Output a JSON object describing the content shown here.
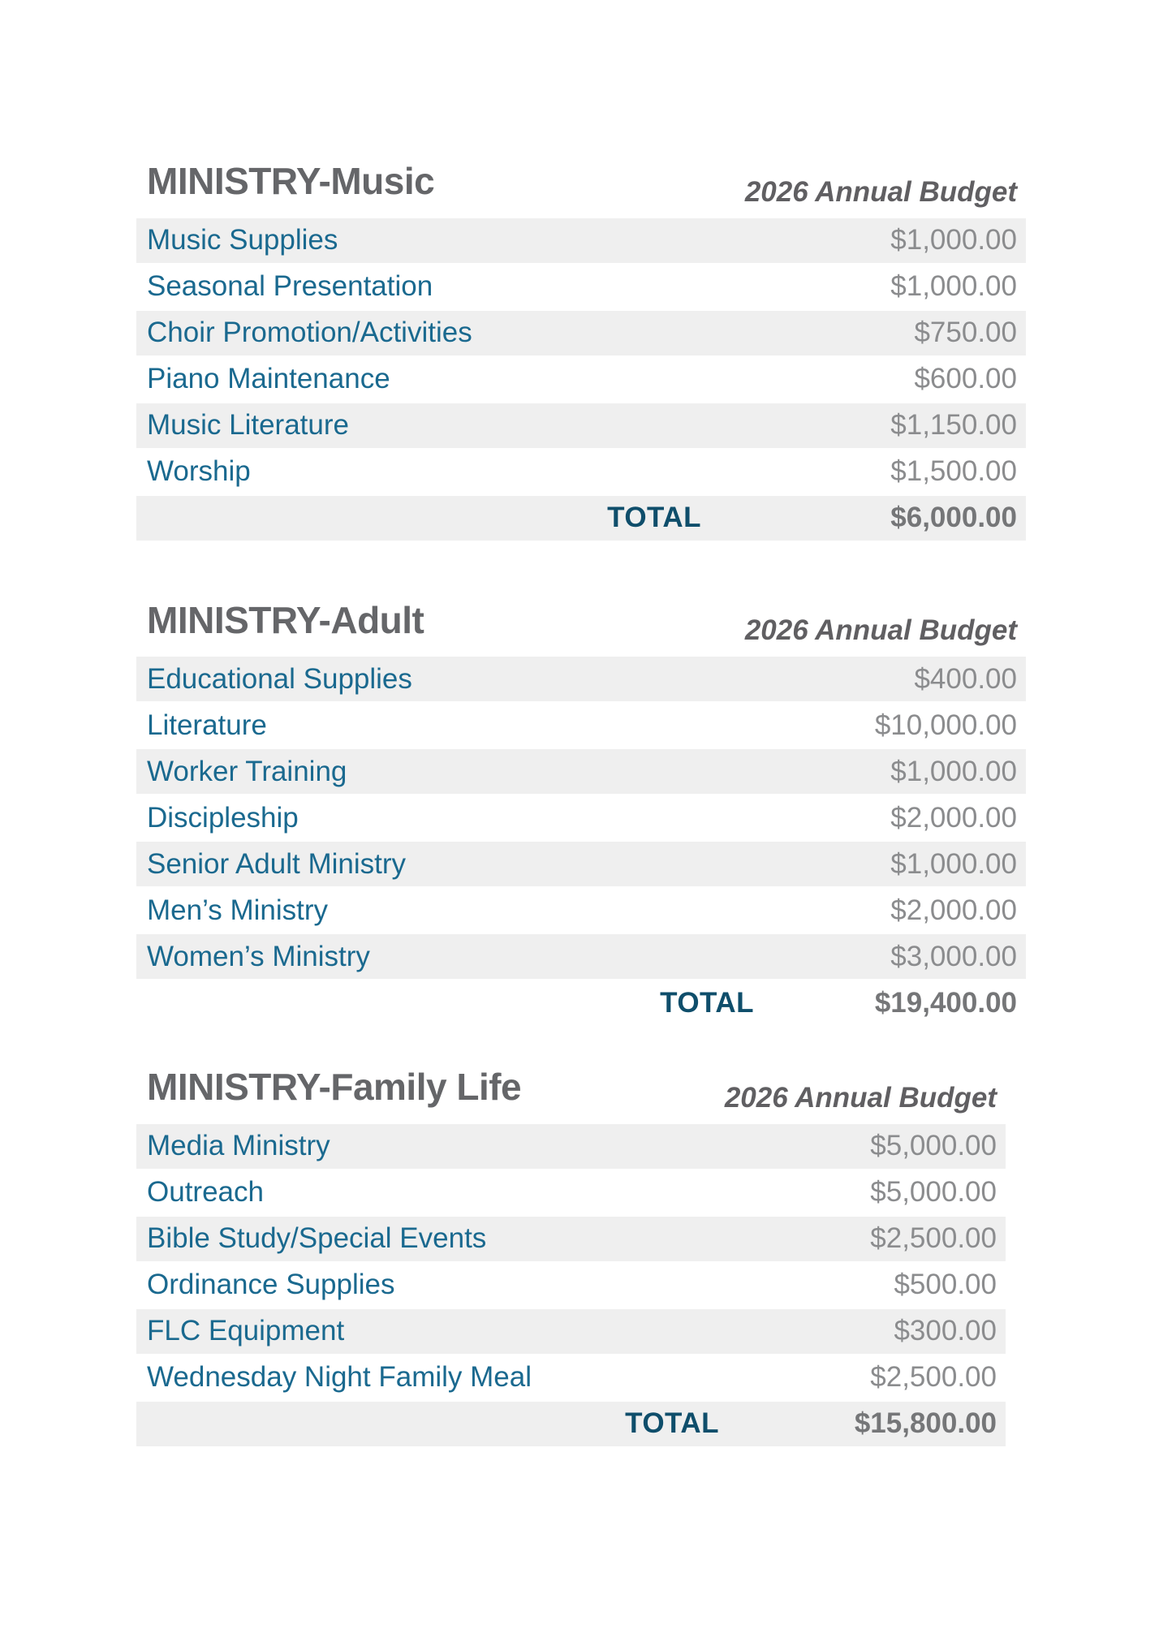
{
  "colors": {
    "title_gray": "#656669",
    "item_label_teal": "#1a698f",
    "total_label_teal": "#0f4e6b",
    "amount_gray": "#8b8c8e",
    "total_amount_gray": "#757678",
    "row_stripe": "#efefef",
    "background": "#ffffff"
  },
  "sections": [
    {
      "title": "MINISTRY-Music",
      "budget_header": "2026 Annual Budget",
      "rows": [
        {
          "label": "Music Supplies",
          "amount": "$1,000.00"
        },
        {
          "label": "Seasonal Presentation",
          "amount": "$1,000.00"
        },
        {
          "label": "Choir Promotion/Activities",
          "amount": "$750.00"
        },
        {
          "label": "Piano Maintenance",
          "amount": "$600.00"
        },
        {
          "label": "Music Literature",
          "amount": "$1,150.00"
        },
        {
          "label": "Worship",
          "amount": "$1,500.00"
        }
      ],
      "total_label": "TOTAL",
      "total_amount": "$6,000.00"
    },
    {
      "title": "MINISTRY-Adult",
      "budget_header": "2026 Annual Budget",
      "rows": [
        {
          "label": "Educational Supplies",
          "amount": "$400.00"
        },
        {
          "label": "Literature",
          "amount": "$10,000.00"
        },
        {
          "label": "Worker Training",
          "amount": "$1,000.00"
        },
        {
          "label": "Discipleship",
          "amount": "$2,000.00"
        },
        {
          "label": "Senior Adult Ministry",
          "amount": "$1,000.00"
        },
        {
          "label": "Men’s Ministry",
          "amount": "$2,000.00"
        },
        {
          "label": "Women’s Ministry",
          "amount": "$3,000.00"
        }
      ],
      "total_label": "TOTAL",
      "total_amount": "$19,400.00"
    },
    {
      "title": "MINISTRY-Family Life",
      "budget_header": "2026 Annual Budget",
      "rows": [
        {
          "label": "Media Ministry",
          "amount": "$5,000.00"
        },
        {
          "label": "Outreach",
          "amount": "$5,000.00"
        },
        {
          "label": "Bible Study/Special Events",
          "amount": "$2,500.00"
        },
        {
          "label": "Ordinance Supplies",
          "amount": "$500.00"
        },
        {
          "label": "FLC Equipment",
          "amount": "$300.00"
        },
        {
          "label": "Wednesday Night Family Meal",
          "amount": "$2,500.00"
        }
      ],
      "total_label": "TOTAL",
      "total_amount": "$15,800.00"
    }
  ]
}
